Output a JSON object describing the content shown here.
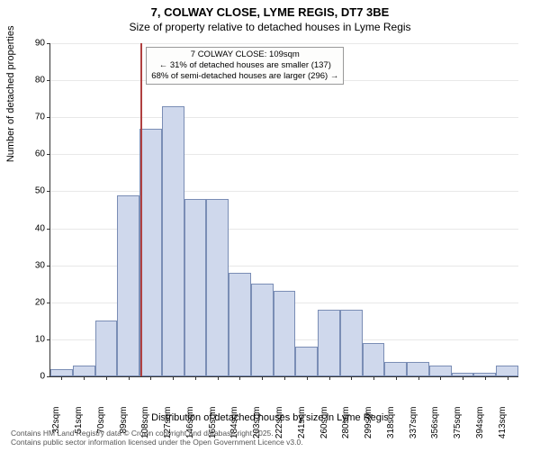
{
  "title_line1": "7, COLWAY CLOSE, LYME REGIS, DT7 3BE",
  "title_line2": "Size of property relative to detached houses in Lyme Regis",
  "y_axis_label": "Number of detached properties",
  "x_axis_label": "Distribution of detached houses by size in Lyme Regis",
  "chart": {
    "type": "histogram",
    "ylim_max": 90,
    "y_ticks": [
      0,
      10,
      20,
      30,
      40,
      50,
      60,
      70,
      80,
      90
    ],
    "x_categories": [
      "32sqm",
      "51sqm",
      "70sqm",
      "89sqm",
      "108sqm",
      "127sqm",
      "146sqm",
      "165sqm",
      "184sqm",
      "203sqm",
      "222sqm",
      "241sqm",
      "260sqm",
      "280sqm",
      "299sqm",
      "318sqm",
      "337sqm",
      "356sqm",
      "375sqm",
      "394sqm",
      "413sqm"
    ],
    "values": [
      2,
      3,
      15,
      49,
      67,
      73,
      48,
      48,
      28,
      25,
      23,
      8,
      18,
      18,
      9,
      4,
      4,
      3,
      1,
      1,
      3
    ],
    "bar_fill": "#cfd8ec",
    "bar_border": "#7a8db5",
    "grid_color": "#e8e8e8",
    "background": "#ffffff",
    "marker": {
      "index": 4.05,
      "color": "#b04040",
      "annotation_lines": [
        "7 COLWAY CLOSE: 109sqm",
        "← 31% of detached houses are smaller (137)",
        "68% of semi-detached houses are larger (296) →"
      ]
    }
  },
  "attribution_line1": "Contains HM Land Registry data © Crown copyright and database right 2025.",
  "attribution_line2": "Contains public sector information licensed under the Open Government Licence v3.0."
}
